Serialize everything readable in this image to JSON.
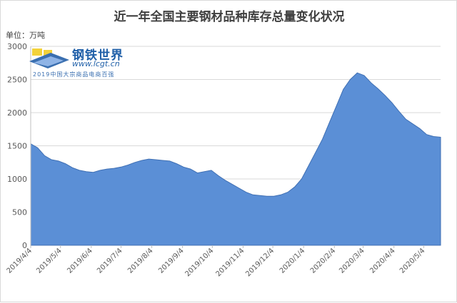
{
  "chart_data": {
    "type": "area",
    "title": "近一年全国主要钢材品种库存总量变化状况",
    "unit_label": "单位：万吨",
    "yticks": [
      0,
      500,
      1000,
      1500,
      2000,
      2500,
      3000
    ],
    "ylim": [
      0,
      3000
    ],
    "grid": true,
    "fill_color": "#5b8fd6",
    "line_color": "#3f6fb3",
    "x_tick_labels": [
      "2019/4/4",
      "2019/5/4",
      "2019/6/4",
      "2019/7/4",
      "2019/8/4",
      "2019/9/4",
      "2019/10/4",
      "2019/11/4",
      "2019/12/4",
      "2020/1/4",
      "2020/2/4",
      "2020/3/4",
      "2020/4/4",
      "2020/5/4"
    ],
    "x": [
      "2019/4/4",
      "2019/4/11",
      "2019/4/18",
      "2019/4/25",
      "2019/5/2",
      "2019/5/9",
      "2019/5/16",
      "2019/5/23",
      "2019/5/30",
      "2019/6/6",
      "2019/6/13",
      "2019/6/20",
      "2019/6/27",
      "2019/7/4",
      "2019/7/11",
      "2019/7/18",
      "2019/7/25",
      "2019/8/1",
      "2019/8/8",
      "2019/8/15",
      "2019/8/22",
      "2019/8/29",
      "2019/9/5",
      "2019/9/12",
      "2019/9/19",
      "2019/9/26",
      "2019/10/3",
      "2019/10/10",
      "2019/10/17",
      "2019/10/24",
      "2019/10/31",
      "2019/11/7",
      "2019/11/14",
      "2019/11/21",
      "2019/11/28",
      "2019/12/5",
      "2019/12/12",
      "2019/12/19",
      "2019/12/26",
      "2020/1/2",
      "2020/1/9",
      "2020/1/16",
      "2020/1/23",
      "2020/1/30",
      "2020/2/6",
      "2020/2/13",
      "2020/2/20",
      "2020/2/27",
      "2020/3/5",
      "2020/3/12",
      "2020/3/19",
      "2020/3/26",
      "2020/4/2",
      "2020/4/9",
      "2020/4/16",
      "2020/4/23",
      "2020/4/30",
      "2020/5/7",
      "2020/5/14",
      "2020/5/21"
    ],
    "values": [
      1530,
      1470,
      1350,
      1290,
      1270,
      1230,
      1170,
      1130,
      1110,
      1100,
      1130,
      1150,
      1160,
      1180,
      1210,
      1250,
      1280,
      1300,
      1290,
      1280,
      1270,
      1230,
      1180,
      1150,
      1090,
      1110,
      1130,
      1050,
      980,
      920,
      860,
      800,
      760,
      750,
      740,
      740,
      760,
      800,
      880,
      1000,
      1200,
      1400,
      1600,
      1850,
      2100,
      2350,
      2500,
      2600,
      2560,
      2450,
      2360,
      2260,
      2150,
      2020,
      1900,
      1830,
      1760,
      1670,
      1640,
      1630
    ]
  },
  "watermark": {
    "name": "钢铁世界",
    "url": "www.lcgt.cn",
    "tagline": "2019中国大宗商品电商百强"
  }
}
